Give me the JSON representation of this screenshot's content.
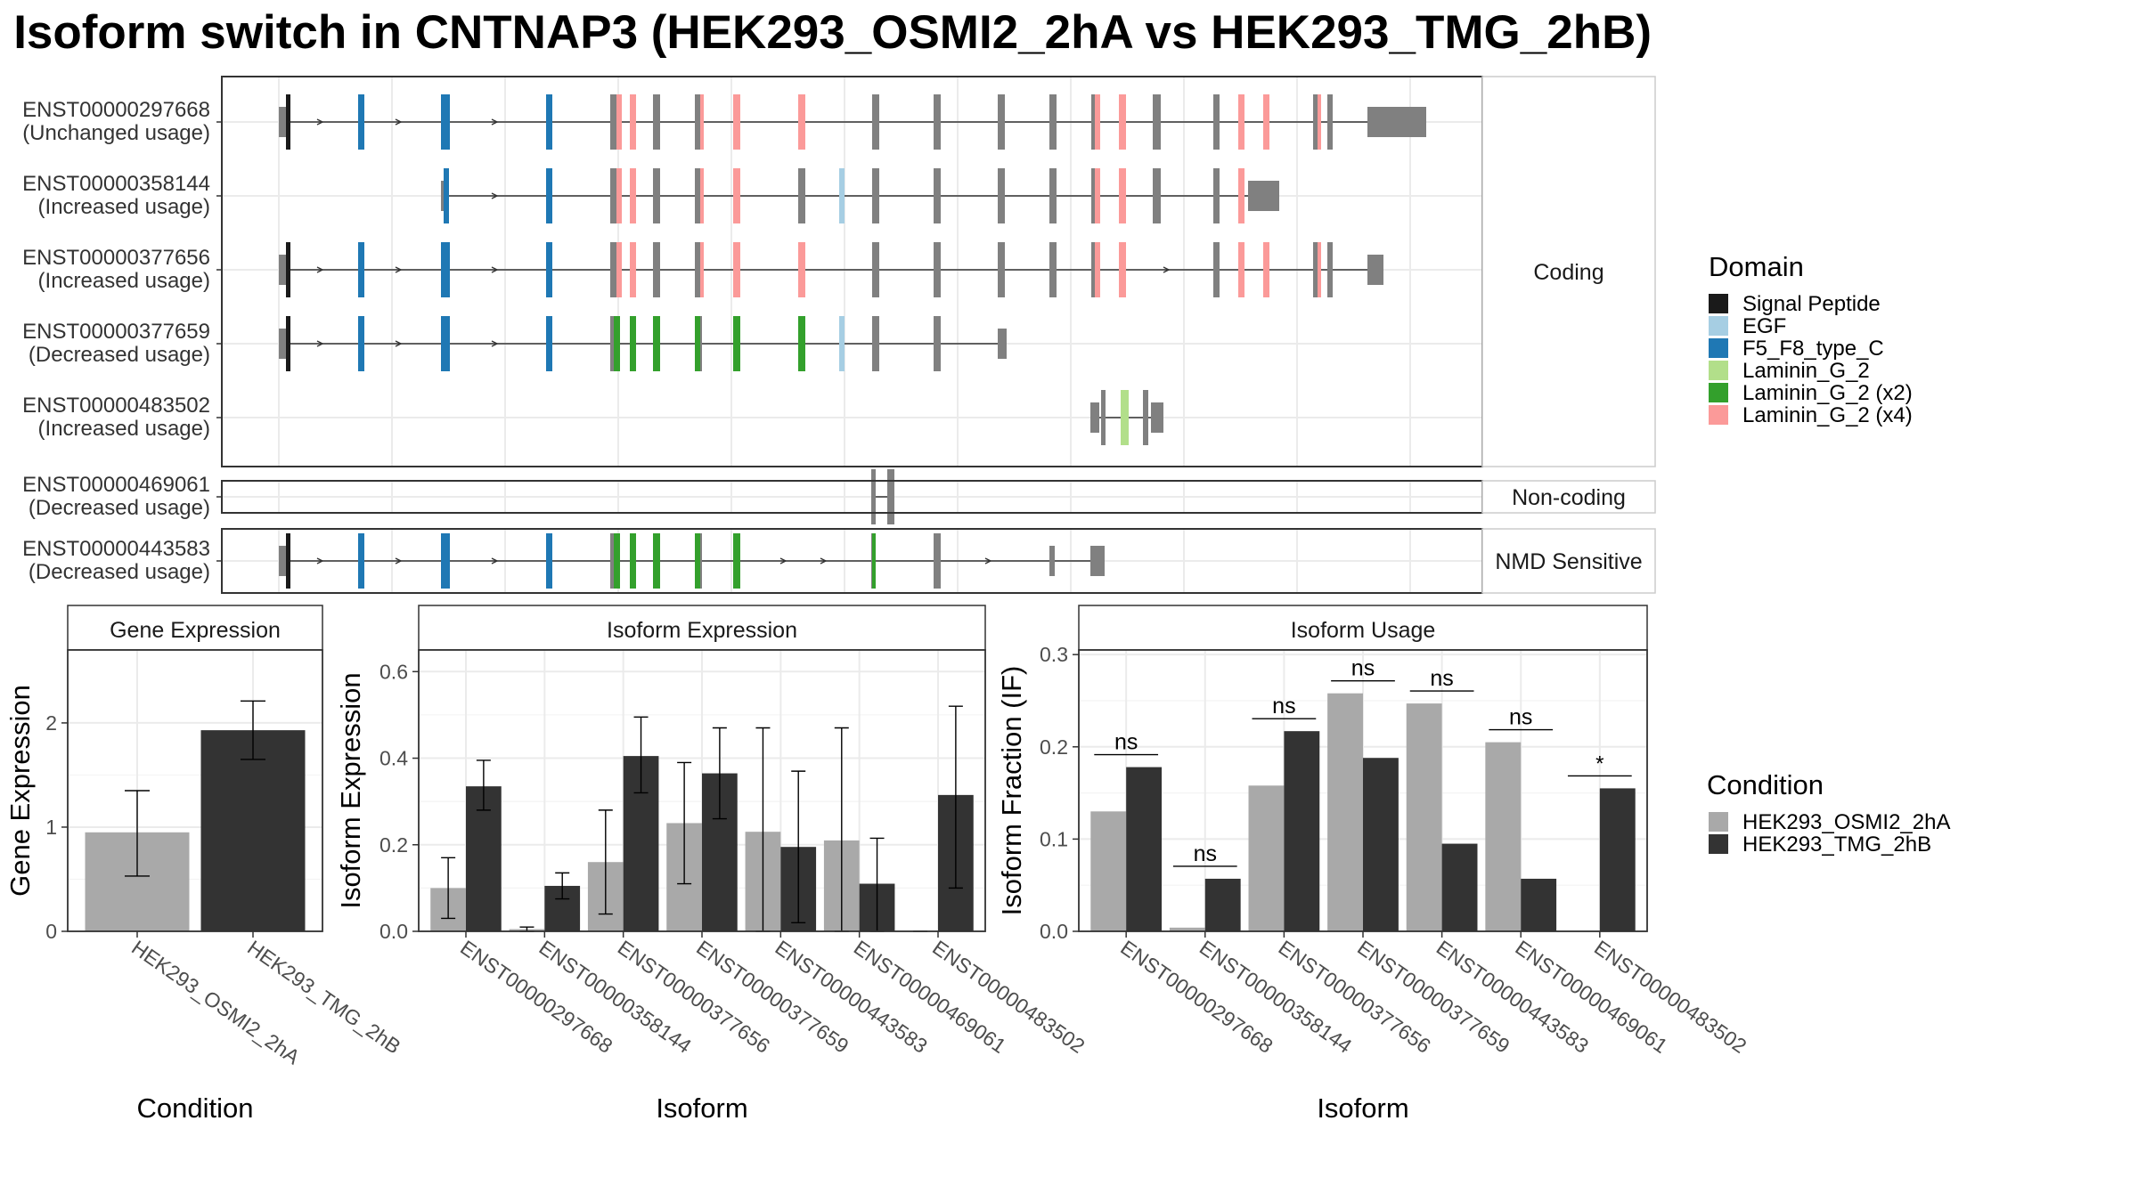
{
  "title": "Isoform switch in CNTNAP3 (HEK293_OSMI2_2hA vs HEK293_TMG_2hB)",
  "colors": {
    "Signal Peptide": "#1a1a1a",
    "EGF": "#a6cee3",
    "F5_F8_type_C": "#1f78b4",
    "Laminin_G_2": "#b2df8a",
    "Laminin_G_2 (x2)": "#33a02c",
    "Laminin_G_2 (x4)": "#fb9a99",
    "exon": "#808080",
    "HEK293_OSMI2_2hA": "#a9a9a9",
    "HEK293_TMG_2hB": "#333333"
  },
  "isoforms": [
    {
      "id": "ENST00000297668",
      "label": "(Unchanged usage)"
    },
    {
      "id": "ENST00000358144",
      "label": "(Increased usage)"
    },
    {
      "id": "ENST00000377656",
      "label": "(Increased usage)"
    },
    {
      "id": "ENST00000377659",
      "label": "(Decreased usage)"
    },
    {
      "id": "ENST00000483502",
      "label": "(Increased usage)"
    },
    {
      "id": "ENST00000469061",
      "label": "(Decreased usage)"
    },
    {
      "id": "ENST00000443583",
      "label": "(Decreased usage)"
    }
  ],
  "facets": [
    "Coding",
    "Non-coding",
    "NMD Sensitive"
  ],
  "legend_domain": {
    "title": "Domain",
    "items": [
      "Signal Peptide",
      "EGF",
      "F5_F8_type_C",
      "Laminin_G_2",
      "Laminin_G_2 (x2)",
      "Laminin_G_2 (x4)"
    ]
  },
  "legend_condition": {
    "title": "Condition",
    "items": [
      "HEK293_OSMI2_2hA",
      "HEK293_TMG_2hB"
    ]
  },
  "chart_data": [
    {
      "type": "bar",
      "title": "Gene Expression",
      "xlabel": "Condition",
      "ylabel": "Gene Expression",
      "categories": [
        "HEK293_OSMI2_2hA",
        "HEK293_TMG_2hB"
      ],
      "values": [
        0.95,
        1.93
      ],
      "error": [
        [
          0.53,
          1.35
        ],
        [
          1.65,
          2.21
        ]
      ],
      "ylim": [
        0,
        2.7
      ],
      "yticks": [
        0,
        1,
        2
      ]
    },
    {
      "type": "bar",
      "title": "Isoform Expression",
      "xlabel": "Isoform",
      "ylabel": "Isoform Expression",
      "categories": [
        "ENST00000297668",
        "ENST00000358144",
        "ENST00000377656",
        "ENST00000377659",
        "ENST00000443583",
        "ENST00000469061",
        "ENST00000483502"
      ],
      "ylim": [
        0,
        0.65
      ],
      "yticks": [
        "0.0",
        "0.2",
        "0.4",
        "0.6"
      ],
      "series": [
        {
          "name": "HEK293_OSMI2_2hA",
          "values": [
            0.1,
            0.005,
            0.16,
            0.25,
            0.23,
            0.21,
            0.0
          ],
          "error": [
            [
              0.03,
              0.17
            ],
            [
              0.0,
              0.01
            ],
            [
              0.04,
              0.28
            ],
            [
              0.11,
              0.39
            ],
            [
              0.0,
              0.47
            ],
            [
              0.0,
              0.47
            ],
            [
              0.0,
              0.0
            ]
          ]
        },
        {
          "name": "HEK293_TMG_2hB",
          "values": [
            0.335,
            0.105,
            0.405,
            0.365,
            0.195,
            0.11,
            0.315
          ],
          "error": [
            [
              0.28,
              0.395
            ],
            [
              0.075,
              0.135
            ],
            [
              0.32,
              0.495
            ],
            [
              0.26,
              0.47
            ],
            [
              0.02,
              0.37
            ],
            [
              0.0,
              0.215
            ],
            [
              0.1,
              0.52
            ]
          ]
        }
      ]
    },
    {
      "type": "bar",
      "title": "Isoform Usage",
      "xlabel": "Isoform",
      "ylabel": "Isoform Fraction (IF)",
      "categories": [
        "ENST00000297668",
        "ENST00000358144",
        "ENST00000377656",
        "ENST00000377659",
        "ENST00000443583",
        "ENST00000469061",
        "ENST00000483502"
      ],
      "ylim": [
        0,
        0.305
      ],
      "yticks": [
        "0.0",
        "0.1",
        "0.2",
        "0.3"
      ],
      "series": [
        {
          "name": "HEK293_OSMI2_2hA",
          "values": [
            0.13,
            0.004,
            0.158,
            0.258,
            0.247,
            0.205,
            0.0
          ]
        },
        {
          "name": "HEK293_TMG_2hB",
          "values": [
            0.178,
            0.057,
            0.217,
            0.188,
            0.095,
            0.057,
            0.155
          ]
        }
      ],
      "significance": [
        "ns",
        "ns",
        "ns",
        "ns",
        "ns",
        "ns",
        "*"
      ]
    }
  ]
}
